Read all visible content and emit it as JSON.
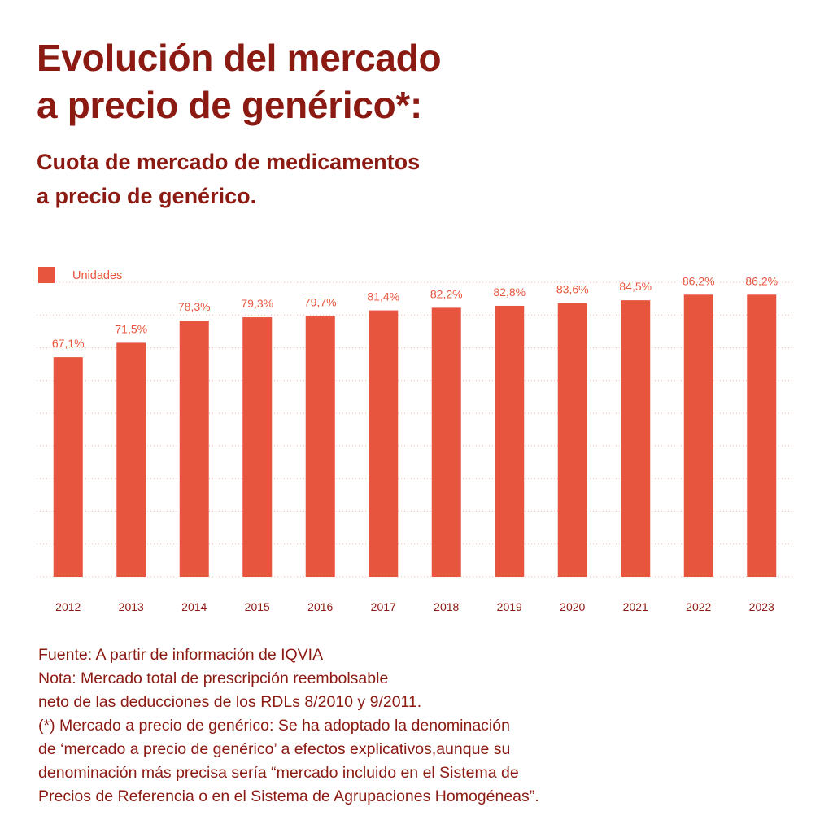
{
  "title_lines": [
    "Evolución del mercado",
    "a precio de genérico*:"
  ],
  "subtitle_lines": [
    "Cuota de mercado de medicamentos",
    "a precio de genérico."
  ],
  "colors": {
    "bar": "#e8553e",
    "title": "#8b1a12",
    "value_label": "#e8553e",
    "tick_label": "#8b1a12",
    "grid": "#f4b7a9"
  },
  "chart_data": {
    "type": "bar",
    "categories": [
      "2012",
      "2013",
      "2014",
      "2015",
      "2016",
      "2017",
      "2018",
      "2019",
      "2020",
      "2021",
      "2022",
      "2023"
    ],
    "series": [
      {
        "name": "Unidades",
        "values": [
          67.1,
          71.5,
          78.3,
          79.3,
          79.7,
          81.4,
          82.2,
          82.8,
          83.6,
          84.5,
          86.2,
          86.2
        ]
      }
    ],
    "value_labels": [
      "67,1%",
      "71,5%",
      "78,3%",
      "79,3%",
      "79,7%",
      "81,4%",
      "82,2%",
      "82,8%",
      "83,6%",
      "84,5%",
      "86,2%",
      "86,2%"
    ],
    "ylim": [
      0,
      90
    ],
    "grid": true,
    "legend_position": "top-left"
  },
  "notes": [
    "Fuente: A partir de información de IQVIA",
    "Nota: Mercado total de prescripción reembolsable",
    "neto de las deducciones de los RDLs 8/2010 y 9/2011.",
    "(*) Mercado a precio de genérico: Se ha adoptado la denominación",
    "de ‘mercado a precio de genérico’ a efectos explicativos,aunque su",
    "denominación más precisa sería “mercado incluido en el Sistema de",
    "Precios de Referencia o en el Sistema de Agrupaciones Homogéneas”."
  ]
}
